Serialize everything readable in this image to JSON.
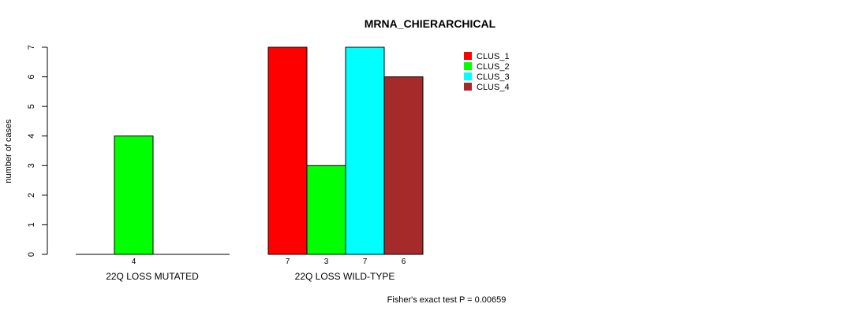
{
  "chart_data": {
    "type": "bar",
    "title": "MRNA_CHIERARCHICAL",
    "ylabel": "number of cases",
    "xlabel": "",
    "ylim": [
      0,
      7
    ],
    "yticks": [
      0,
      1,
      2,
      3,
      4,
      5,
      6,
      7
    ],
    "groups": [
      "22Q LOSS MUTATED",
      "22Q LOSS WILD-TYPE"
    ],
    "series": [
      {
        "name": "CLUS_1",
        "color": "#ff0000",
        "values": [
          0,
          7
        ]
      },
      {
        "name": "CLUS_2",
        "color": "#00ff00",
        "values": [
          4,
          3
        ]
      },
      {
        "name": "CLUS_3",
        "color": "#00ffff",
        "values": [
          0,
          7
        ]
      },
      {
        "name": "CLUS_4",
        "color": "#a52a2a",
        "values": [
          0,
          6
        ]
      }
    ],
    "legend_position": "top-right",
    "grid": false,
    "footnote": "Fisher's exact test P = 0.00659"
  }
}
